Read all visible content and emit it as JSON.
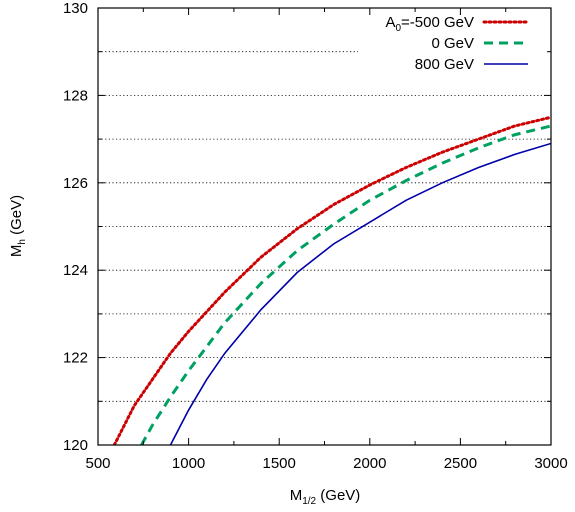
{
  "chart_data": {
    "type": "line",
    "xlabel": {
      "main": "M",
      "sub": "1/2",
      "rest": " (GeV)"
    },
    "ylabel": {
      "main": "M",
      "sub": "h",
      "rest": " (GeV)"
    },
    "xlim": [
      500,
      3000
    ],
    "ylim": [
      120,
      130
    ],
    "xticks": [
      500,
      1000,
      1500,
      2000,
      2500,
      3000
    ],
    "yticks": [
      120,
      122,
      124,
      126,
      128,
      130
    ],
    "grid": "horizontal dotted",
    "legend_position": "top-right",
    "series": [
      {
        "name": "A0=-500 GeV",
        "label_main": "A",
        "label_sub": "0",
        "label_rest": "=-500 GeV",
        "color": "#cc0000",
        "style": "dotted",
        "x": [
          590,
          700,
          800,
          900,
          1000,
          1200,
          1400,
          1600,
          1800,
          2000,
          2200,
          2400,
          2600,
          2800,
          3000
        ],
        "y": [
          120.0,
          120.9,
          121.5,
          122.1,
          122.6,
          123.5,
          124.3,
          124.95,
          125.5,
          125.95,
          126.35,
          126.7,
          127.0,
          127.3,
          127.5
        ]
      },
      {
        "name": "0 GeV",
        "label_main": "0 GeV",
        "label_sub": "",
        "label_rest": "",
        "color": "#00a060",
        "style": "dashed",
        "x": [
          740,
          800,
          900,
          1000,
          1200,
          1400,
          1600,
          1800,
          2000,
          2200,
          2400,
          2600,
          2800,
          3000
        ],
        "y": [
          120.0,
          120.45,
          121.1,
          121.7,
          122.8,
          123.7,
          124.45,
          125.05,
          125.6,
          126.05,
          126.45,
          126.8,
          127.1,
          127.3
        ]
      },
      {
        "name": "800 GeV",
        "label_main": "800 GeV",
        "label_sub": "",
        "label_rest": "",
        "color": "#0000aa",
        "style": "solid",
        "x": [
          900,
          1000,
          1100,
          1200,
          1400,
          1600,
          1800,
          2000,
          2200,
          2400,
          2600,
          2800,
          3000
        ],
        "y": [
          120.0,
          120.8,
          121.5,
          122.1,
          123.1,
          123.95,
          124.6,
          125.1,
          125.6,
          126.0,
          126.35,
          126.65,
          126.9
        ]
      }
    ]
  }
}
